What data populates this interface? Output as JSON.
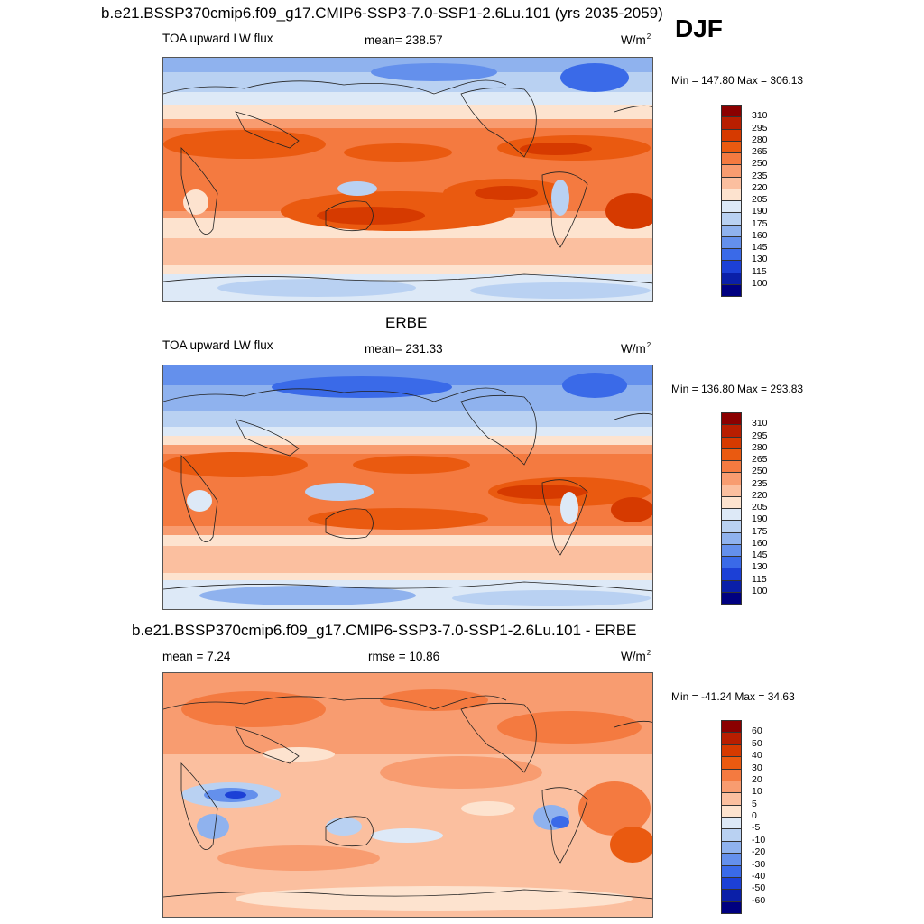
{
  "header": {
    "title": "b.e21.BSSP370cmip6.f09_g17.CMIP6-SSP3-7.0-SSP1-2.6Lu.101 (yrs 2035-2059)",
    "season": "DJF"
  },
  "panels": [
    {
      "id": "model",
      "title": "",
      "left_label": "TOA upward LW flux",
      "center_label": "mean= 238.57",
      "units": "W/m",
      "units_sup": "2",
      "minmax": "Min = 147.80 Max = 306.13"
    },
    {
      "id": "obs",
      "title": "ERBE",
      "left_label": "TOA upward LW flux",
      "center_label": "mean= 231.33",
      "units": "W/m",
      "units_sup": "2",
      "minmax": "Min = 136.80 Max = 293.83"
    },
    {
      "id": "diff",
      "title": "b.e21.BSSP370cmip6.f09_g17.CMIP6-SSP3-7.0-SSP1-2.6Lu.101 - ERBE",
      "left_label": "mean =   7.24",
      "center_label": "rmse =  10.86",
      "units": "W/m",
      "units_sup": "2",
      "minmax": "Min = -41.24 Max =  34.63"
    }
  ],
  "colorbars": {
    "absolute": {
      "labels": [
        "310",
        "295",
        "280",
        "265",
        "250",
        "235",
        "220",
        "205",
        "190",
        "175",
        "160",
        "145",
        "130",
        "115",
        "100"
      ],
      "colors": [
        "#8b0000",
        "#b81e00",
        "#d63a00",
        "#ea5a10",
        "#f47a40",
        "#f89c70",
        "#fbbf9f",
        "#fde3cf",
        "#dde9f7",
        "#b9d1f2",
        "#8fb2ee",
        "#6490ec",
        "#3a6ae8",
        "#1c40d6",
        "#0a1fa8",
        "#000080"
      ]
    },
    "difference": {
      "labels": [
        "60",
        "50",
        "40",
        "30",
        "20",
        "10",
        "5",
        "0",
        "-5",
        "-10",
        "-20",
        "-30",
        "-40",
        "-50",
        "-60"
      ],
      "colors": [
        "#8b0000",
        "#b81e00",
        "#d63a00",
        "#ea5a10",
        "#f47a40",
        "#f89c70",
        "#fbbf9f",
        "#fde3cf",
        "#dde9f7",
        "#b9d1f2",
        "#8fb2ee",
        "#6490ec",
        "#3a6ae8",
        "#1c40d6",
        "#0a1fa8",
        "#000080"
      ]
    }
  }
}
